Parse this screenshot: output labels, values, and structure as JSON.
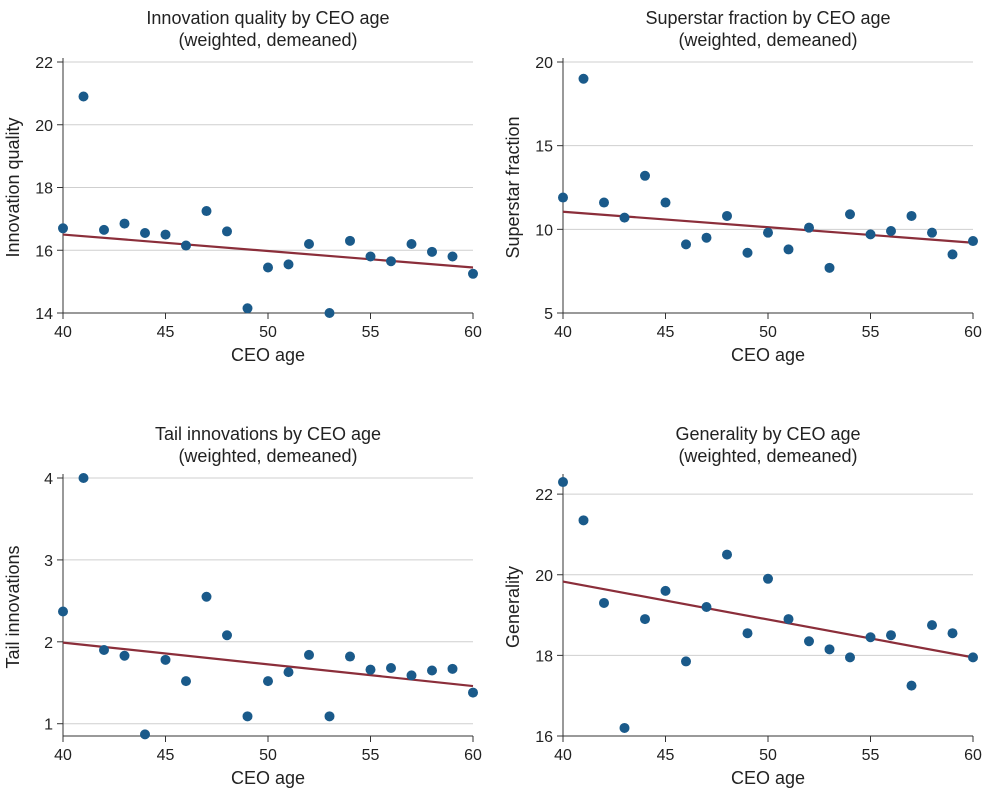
{
  "chart_data": [
    {
      "type": "scatter",
      "title": "Innovation quality by CEO age",
      "subtitle": "(weighted, demeaned)",
      "xlabel": "CEO age",
      "ylabel": "Innovation quality",
      "xlim": [
        40,
        60
      ],
      "ylim": [
        14,
        22
      ],
      "xticks": [
        40,
        45,
        50,
        55,
        60
      ],
      "yticks": [
        14,
        16,
        18,
        20,
        22
      ],
      "grid": true,
      "points": [
        {
          "x": 40,
          "y": 16.7
        },
        {
          "x": 41,
          "y": 20.9
        },
        {
          "x": 42,
          "y": 16.65
        },
        {
          "x": 43,
          "y": 16.85
        },
        {
          "x": 44,
          "y": 16.55
        },
        {
          "x": 45,
          "y": 16.5
        },
        {
          "x": 46,
          "y": 16.15
        },
        {
          "x": 47,
          "y": 17.25
        },
        {
          "x": 48,
          "y": 16.6
        },
        {
          "x": 49,
          "y": 14.15
        },
        {
          "x": 50,
          "y": 15.45
        },
        {
          "x": 51,
          "y": 15.55
        },
        {
          "x": 52,
          "y": 16.2
        },
        {
          "x": 53,
          "y": 14.0
        },
        {
          "x": 54,
          "y": 16.3
        },
        {
          "x": 55,
          "y": 15.8
        },
        {
          "x": 56,
          "y": 15.65
        },
        {
          "x": 57,
          "y": 16.2
        },
        {
          "x": 58,
          "y": 15.95
        },
        {
          "x": 59,
          "y": 15.8
        },
        {
          "x": 60,
          "y": 15.25
        }
      ],
      "fit": {
        "x": [
          40,
          60
        ],
        "y": [
          16.5,
          15.45
        ]
      },
      "colors": {
        "points": "#1a5a8a",
        "fit": "#8b2e3a"
      }
    },
    {
      "type": "scatter",
      "title": "Superstar fraction by CEO age",
      "subtitle": "(weighted, demeaned)",
      "xlabel": "CEO age",
      "ylabel": "Superstar fraction",
      "xlim": [
        40,
        60
      ],
      "ylim": [
        5,
        20
      ],
      "xticks": [
        40,
        45,
        50,
        55,
        60
      ],
      "yticks": [
        5,
        10,
        15,
        20
      ],
      "grid": true,
      "points": [
        {
          "x": 40,
          "y": 11.9
        },
        {
          "x": 41,
          "y": 19.0
        },
        {
          "x": 42,
          "y": 11.6
        },
        {
          "x": 43,
          "y": 10.7
        },
        {
          "x": 44,
          "y": 13.2
        },
        {
          "x": 45,
          "y": 11.6
        },
        {
          "x": 46,
          "y": 9.1
        },
        {
          "x": 47,
          "y": 9.5
        },
        {
          "x": 48,
          "y": 10.8
        },
        {
          "x": 49,
          "y": 8.6
        },
        {
          "x": 50,
          "y": 9.8
        },
        {
          "x": 51,
          "y": 8.8
        },
        {
          "x": 52,
          "y": 10.1
        },
        {
          "x": 53,
          "y": 7.7
        },
        {
          "x": 54,
          "y": 10.9
        },
        {
          "x": 55,
          "y": 9.7
        },
        {
          "x": 56,
          "y": 9.9
        },
        {
          "x": 57,
          "y": 10.8
        },
        {
          "x": 58,
          "y": 9.8
        },
        {
          "x": 59,
          "y": 8.5
        },
        {
          "x": 60,
          "y": 9.3
        }
      ],
      "fit": {
        "x": [
          40,
          60
        ],
        "y": [
          11.05,
          9.2
        ]
      },
      "colors": {
        "points": "#1a5a8a",
        "fit": "#8b2e3a"
      }
    },
    {
      "type": "scatter",
      "title": "Tail innovations by CEO age",
      "subtitle": "(weighted, demeaned)",
      "xlabel": "CEO age",
      "ylabel": "Tail innovations",
      "xlim": [
        40,
        60
      ],
      "ylim": [
        0.85,
        4
      ],
      "xticks": [
        40,
        45,
        50,
        55,
        60
      ],
      "yticks": [
        1,
        2,
        3,
        4
      ],
      "grid": true,
      "points": [
        {
          "x": 40,
          "y": 2.37
        },
        {
          "x": 41,
          "y": 4.0
        },
        {
          "x": 42,
          "y": 1.9
        },
        {
          "x": 43,
          "y": 1.83
        },
        {
          "x": 44,
          "y": 0.87
        },
        {
          "x": 45,
          "y": 1.78
        },
        {
          "x": 46,
          "y": 1.52
        },
        {
          "x": 47,
          "y": 2.55
        },
        {
          "x": 48,
          "y": 2.08
        },
        {
          "x": 49,
          "y": 1.09
        },
        {
          "x": 50,
          "y": 1.52
        },
        {
          "x": 51,
          "y": 1.63
        },
        {
          "x": 52,
          "y": 1.84
        },
        {
          "x": 53,
          "y": 1.09
        },
        {
          "x": 54,
          "y": 1.82
        },
        {
          "x": 55,
          "y": 1.66
        },
        {
          "x": 56,
          "y": 1.68
        },
        {
          "x": 57,
          "y": 1.59
        },
        {
          "x": 58,
          "y": 1.65
        },
        {
          "x": 59,
          "y": 1.67
        },
        {
          "x": 60,
          "y": 1.38
        }
      ],
      "fit": {
        "x": [
          40,
          60
        ],
        "y": [
          1.99,
          1.46
        ]
      },
      "colors": {
        "points": "#1a5a8a",
        "fit": "#8b2e3a"
      }
    },
    {
      "type": "scatter",
      "title": "Generality by CEO age",
      "subtitle": "(weighted, demeaned)",
      "xlabel": "CEO age",
      "ylabel": "Generality",
      "xlim": [
        40,
        60
      ],
      "ylim": [
        16,
        22.4
      ],
      "xticks": [
        40,
        45,
        50,
        55,
        60
      ],
      "yticks": [
        16,
        18,
        20,
        22
      ],
      "grid": true,
      "points": [
        {
          "x": 40,
          "y": 22.3
        },
        {
          "x": 41,
          "y": 21.35
        },
        {
          "x": 42,
          "y": 19.3
        },
        {
          "x": 43,
          "y": 16.2
        },
        {
          "x": 44,
          "y": 18.9
        },
        {
          "x": 45,
          "y": 19.6
        },
        {
          "x": 46,
          "y": 17.85
        },
        {
          "x": 47,
          "y": 19.2
        },
        {
          "x": 48,
          "y": 20.5
        },
        {
          "x": 49,
          "y": 18.55
        },
        {
          "x": 50,
          "y": 19.9
        },
        {
          "x": 51,
          "y": 18.9
        },
        {
          "x": 52,
          "y": 18.35
        },
        {
          "x": 53,
          "y": 18.15
        },
        {
          "x": 54,
          "y": 17.95
        },
        {
          "x": 55,
          "y": 18.45
        },
        {
          "x": 56,
          "y": 18.5
        },
        {
          "x": 57,
          "y": 17.25
        },
        {
          "x": 58,
          "y": 18.75
        },
        {
          "x": 59,
          "y": 18.55
        },
        {
          "x": 60,
          "y": 17.95
        }
      ],
      "fit": {
        "x": [
          40,
          60
        ],
        "y": [
          19.83,
          17.95
        ]
      },
      "colors": {
        "points": "#1a5a8a",
        "fit": "#8b2e3a"
      }
    }
  ]
}
